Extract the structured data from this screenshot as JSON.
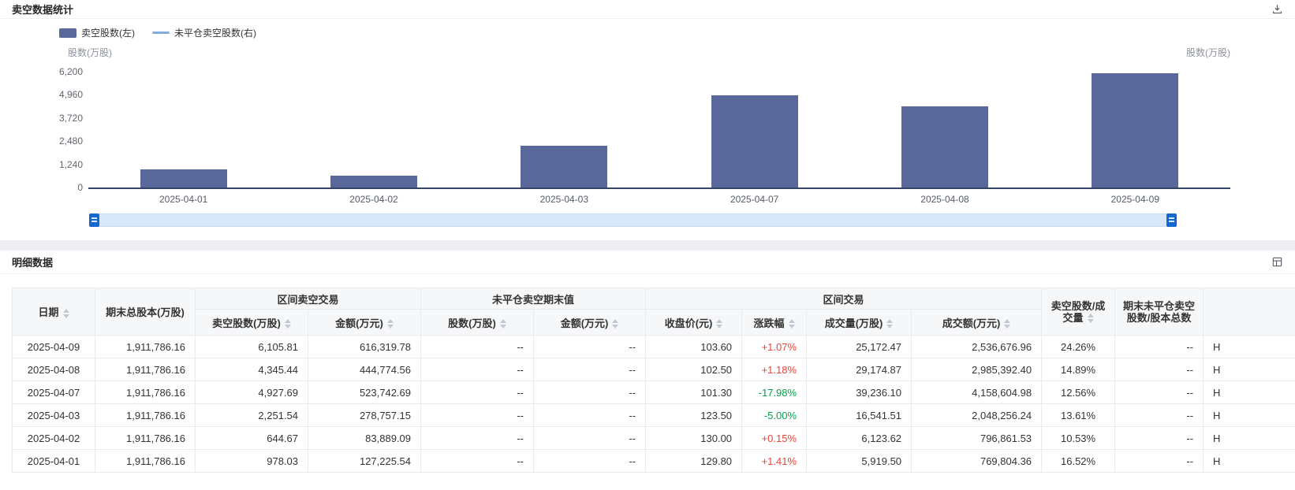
{
  "colors": {
    "up": "#e6453a",
    "down": "#0a9e4c",
    "bar": "#5a679a",
    "line": "#86abdd",
    "accent": "#1668cf"
  },
  "chart_section": {
    "title": "卖空数据统计",
    "legend": [
      {
        "label": "卖空股数(左)"
      },
      {
        "label": "未平仓卖空股数(右)"
      }
    ]
  },
  "chart_data": {
    "type": "bar",
    "title": "卖空数据统计",
    "categories": [
      "2025-04-01",
      "2025-04-02",
      "2025-04-03",
      "2025-04-07",
      "2025-04-08",
      "2025-04-09"
    ],
    "series": [
      {
        "name": "卖空股数(左)",
        "type": "bar",
        "axis": "left",
        "values": [
          978.03,
          644.67,
          2251.54,
          4927.69,
          4345.44,
          6105.81
        ]
      },
      {
        "name": "未平仓卖空股数(右)",
        "type": "line",
        "axis": "right",
        "values": [
          null,
          null,
          null,
          null,
          null,
          null
        ]
      }
    ],
    "ylabel_left": "股数(万股)",
    "ylabel_right": "股数(万股)",
    "ylim": [
      0,
      6200
    ],
    "yticks": [
      0,
      1240,
      2480,
      3720,
      4960,
      6200
    ],
    "ytick_labels": [
      "0",
      "1,240",
      "2,480",
      "3,720",
      "4,960",
      "6,200"
    ],
    "grid": false,
    "legend_position": "top-left"
  },
  "table_section": {
    "title": "明细数据",
    "header": {
      "date": "日期",
      "total_equity": "期末总股本(万股)",
      "group_short": "区间卖空交易",
      "short_shares": "卖空股数(万股)",
      "short_amount": "金额(万元)",
      "group_open": "未平仓卖空期末值",
      "open_shares": "股数(万股)",
      "open_amount": "金额(万元)",
      "group_range": "区间交易",
      "close": "收盘价(元)",
      "change": "涨跌幅",
      "volume": "成交量(万股)",
      "turnover": "成交额(万元)",
      "ratio_volume": "卖空股数/成交量",
      "ratio_equity": "期末未平仓卖空股数/股本总数"
    },
    "rows": [
      {
        "date": "2025-04-09",
        "total_equity": "1,911,786.16",
        "short_shares": "6,105.81",
        "short_amount": "616,319.78",
        "open_shares": "--",
        "open_amount": "--",
        "close": "103.60",
        "change": "+1.07%",
        "change_dir": "up",
        "volume": "25,172.47",
        "turnover": "2,536,676.96",
        "ratio_volume": "24.26%",
        "ratio_equity": "--",
        "extra": "H"
      },
      {
        "date": "2025-04-08",
        "total_equity": "1,911,786.16",
        "short_shares": "4,345.44",
        "short_amount": "444,774.56",
        "open_shares": "--",
        "open_amount": "--",
        "close": "102.50",
        "change": "+1.18%",
        "change_dir": "up",
        "volume": "29,174.87",
        "turnover": "2,985,392.40",
        "ratio_volume": "14.89%",
        "ratio_equity": "--",
        "extra": "H"
      },
      {
        "date": "2025-04-07",
        "total_equity": "1,911,786.16",
        "short_shares": "4,927.69",
        "short_amount": "523,742.69",
        "open_shares": "--",
        "open_amount": "--",
        "close": "101.30",
        "change": "-17.98%",
        "change_dir": "down",
        "volume": "39,236.10",
        "turnover": "4,158,604.98",
        "ratio_volume": "12.56%",
        "ratio_equity": "--",
        "extra": "H"
      },
      {
        "date": "2025-04-03",
        "total_equity": "1,911,786.16",
        "short_shares": "2,251.54",
        "short_amount": "278,757.15",
        "open_shares": "--",
        "open_amount": "--",
        "close": "123.50",
        "change": "-5.00%",
        "change_dir": "down",
        "volume": "16,541.51",
        "turnover": "2,048,256.24",
        "ratio_volume": "13.61%",
        "ratio_equity": "--",
        "extra": "H"
      },
      {
        "date": "2025-04-02",
        "total_equity": "1,911,786.16",
        "short_shares": "644.67",
        "short_amount": "83,889.09",
        "open_shares": "--",
        "open_amount": "--",
        "close": "130.00",
        "change": "+0.15%",
        "change_dir": "up",
        "volume": "6,123.62",
        "turnover": "796,861.53",
        "ratio_volume": "10.53%",
        "ratio_equity": "--",
        "extra": "H"
      },
      {
        "date": "2025-04-01",
        "total_equity": "1,911,786.16",
        "short_shares": "978.03",
        "short_amount": "127,225.54",
        "open_shares": "--",
        "open_amount": "--",
        "close": "129.80",
        "change": "+1.41%",
        "change_dir": "up",
        "volume": "5,919.50",
        "turnover": "769,804.36",
        "ratio_volume": "16.52%",
        "ratio_equity": "--",
        "extra": "H"
      }
    ]
  }
}
